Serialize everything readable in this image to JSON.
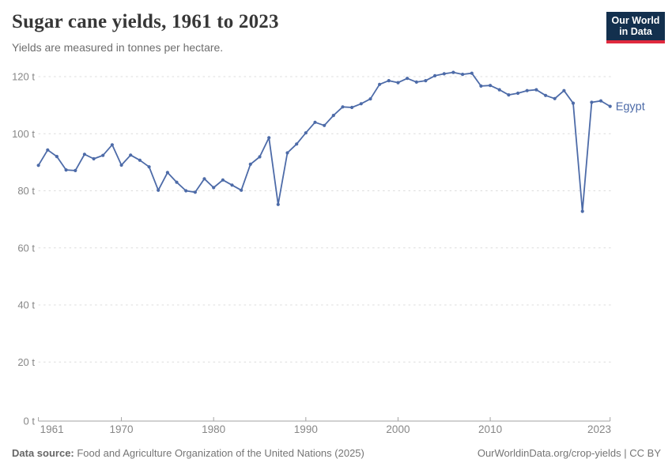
{
  "header": {
    "title": "Sugar cane yields, 1961 to 2023",
    "subtitle": "Yields are measured in tonnes per hectare.",
    "logo_line1": "Our World",
    "logo_line2": "in Data"
  },
  "footer": {
    "source_label": "Data source:",
    "source_text": " Food and Agriculture Organization of the United Nations (2025)",
    "attribution": "OurWorldinData.org/crop-yields | CC BY"
  },
  "colors": {
    "accent_line": "#4d6ba8",
    "logo_bg": "#13304e",
    "logo_bar": "#e0293e",
    "gridline": "#dcdcdc",
    "axis": "#a3a3a3",
    "tick_label": "#878787"
  },
  "chart_data": {
    "type": "line",
    "title": "Sugar cane yields, 1961 to 2023",
    "subtitle": "Yields are measured in tonnes per hectare.",
    "xlabel": "",
    "ylabel": "tonnes per hectare",
    "xlim": [
      1961,
      2023
    ],
    "ylim": [
      0,
      120
    ],
    "xticks": [
      1961,
      1970,
      1980,
      1990,
      2000,
      2010,
      2023
    ],
    "yticks": [
      0,
      20,
      40,
      60,
      80,
      100,
      120
    ],
    "ytick_suffix": " t",
    "grid": "horizontal-dashed",
    "legend_position": "line-end-label",
    "x": [
      1961,
      1962,
      1963,
      1964,
      1965,
      1966,
      1967,
      1968,
      1969,
      1970,
      1971,
      1972,
      1973,
      1974,
      1975,
      1976,
      1977,
      1978,
      1979,
      1980,
      1981,
      1982,
      1983,
      1984,
      1985,
      1986,
      1987,
      1988,
      1989,
      1990,
      1991,
      1992,
      1993,
      1994,
      1995,
      1996,
      1997,
      1998,
      1999,
      2000,
      2001,
      2002,
      2003,
      2004,
      2005,
      2006,
      2007,
      2008,
      2009,
      2010,
      2011,
      2012,
      2013,
      2014,
      2015,
      2016,
      2017,
      2018,
      2019,
      2020,
      2021,
      2022,
      2023
    ],
    "series": [
      {
        "name": "Egypt",
        "color": "#4d6ba8",
        "values": [
          88.9,
          94.3,
          92.0,
          87.3,
          87.1,
          92.8,
          91.2,
          92.4,
          96.1,
          89.0,
          92.5,
          90.7,
          88.4,
          80.2,
          86.4,
          83.0,
          80.0,
          79.5,
          84.2,
          81.1,
          83.8,
          82.0,
          80.2,
          89.3,
          91.9,
          98.6,
          75.2,
          93.3,
          96.4,
          100.3,
          104.0,
          102.9,
          106.4,
          109.4,
          109.2,
          110.5,
          112.2,
          117.3,
          118.6,
          117.9,
          119.4,
          118.1,
          118.6,
          120.3,
          121.0,
          121.5,
          120.8,
          121.2,
          116.7,
          116.9,
          115.4,
          113.6,
          114.2,
          115.1,
          115.4,
          113.4,
          112.3,
          115.1,
          110.7,
          72.8,
          111.0,
          111.5,
          109.6
        ]
      }
    ]
  }
}
